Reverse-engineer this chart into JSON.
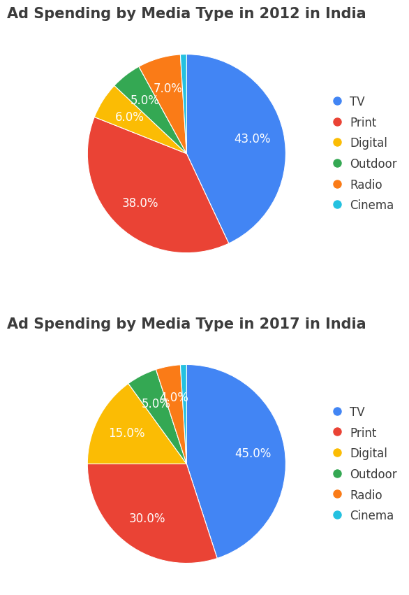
{
  "chart1": {
    "title": "Ad Spending by Media Type in 2012 in India",
    "labels": [
      "TV",
      "Print",
      "Digital",
      "Outdoor",
      "Radio",
      "Cinema"
    ],
    "values": [
      43.0,
      38.0,
      6.0,
      5.0,
      7.0,
      1.0
    ],
    "colors": [
      "#4285F4",
      "#EA4335",
      "#FBBC04",
      "#34A853",
      "#FA7B17",
      "#24C1E0"
    ]
  },
  "chart2": {
    "title": "Ad Spending by Media Type in 2017 in India",
    "labels": [
      "TV",
      "Print",
      "Digital",
      "Outdoor",
      "Radio",
      "Cinema"
    ],
    "values": [
      45.0,
      30.0,
      15.0,
      5.0,
      4.0,
      1.0
    ],
    "colors": [
      "#4285F4",
      "#EA4335",
      "#FBBC04",
      "#34A853",
      "#FA7B17",
      "#24C1E0"
    ]
  },
  "legend_labels": [
    "TV",
    "Print",
    "Digital",
    "Outdoor",
    "Radio",
    "Cinema"
  ],
  "legend_colors": [
    "#4285F4",
    "#EA4335",
    "#FBBC04",
    "#34A853",
    "#FA7B17",
    "#24C1E0"
  ],
  "title_fontsize": 15,
  "label_fontsize": 12,
  "legend_fontsize": 12,
  "background_color": "#FFFFFF",
  "text_color": "#3C3C3C"
}
